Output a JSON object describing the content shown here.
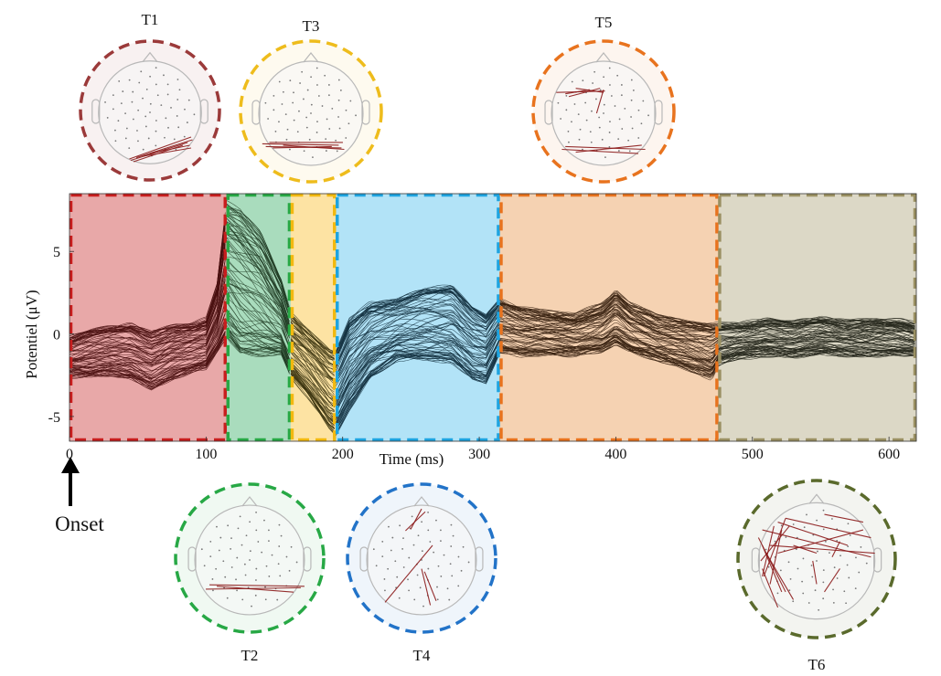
{
  "chart_data": {
    "type": "line",
    "title": "",
    "xlabel": "Time (ms)",
    "ylabel": "Potentiel (μV)",
    "xlim": [
      0,
      620
    ],
    "ylim": [
      -6.5,
      8.5
    ],
    "xticks": [
      0,
      100,
      200,
      300,
      400,
      500,
      600
    ],
    "yticks": [
      5,
      0,
      -5
    ],
    "onset_label": "Onset",
    "onset_ms": 0,
    "series_description": "~120 overlaid ERP channel traces",
    "windows": [
      {
        "name": "T1",
        "start": 0,
        "end": 115,
        "fill": "#e8a8a8",
        "stroke": "#c81e1e",
        "trace": "#4a1010"
      },
      {
        "name": "T2",
        "start": 115,
        "end": 162,
        "fill": "#a9dcbd",
        "stroke": "#27a845",
        "trace": "#1e3a22"
      },
      {
        "name": "T3",
        "start": 162,
        "end": 195,
        "fill": "#fde3a3",
        "stroke": "#f2b90f",
        "trace": "#3c3510"
      },
      {
        "name": "T4",
        "start": 195,
        "end": 315,
        "fill": "#b2e3f7",
        "stroke": "#1ea4e0",
        "trace": "#13303f"
      },
      {
        "name": "T5",
        "start": 315,
        "end": 475,
        "fill": "#f5d2b2",
        "stroke": "#e8731e",
        "trace": "#36200f"
      },
      {
        "name": "T6",
        "start": 475,
        "end": 620,
        "fill": "#dcd8c6",
        "stroke": "#9a9062",
        "trace": "#25261b"
      }
    ],
    "envelope": {
      "t": [
        0,
        15,
        30,
        45,
        60,
        75,
        90,
        100,
        108,
        115,
        125,
        140,
        155,
        162,
        175,
        190,
        195,
        205,
        220,
        240,
        260,
        280,
        295,
        305,
        315,
        330,
        350,
        370,
        390,
        400,
        410,
        430,
        450,
        470,
        475,
        490,
        510,
        530,
        550,
        570,
        590,
        610,
        620
      ],
      "mean": [
        -1.3,
        -1.0,
        -0.8,
        -0.8,
        -1.4,
        -0.8,
        -0.6,
        -0.8,
        0.5,
        2.5,
        1.5,
        1.0,
        0.4,
        -0.5,
        -1.8,
        -3.2,
        -3.5,
        -1.8,
        -0.3,
        0.1,
        0.4,
        0.8,
        -0.2,
        -0.4,
        0.5,
        0.2,
        0.0,
        -0.2,
        0.3,
        0.8,
        0.3,
        -0.2,
        -0.5,
        -0.9,
        -0.9,
        -0.5,
        -0.1,
        -0.4,
        -0.1,
        -0.3,
        -0.1,
        -0.2,
        -0.2
      ],
      "lo": [
        -2.5,
        -2.5,
        -2.4,
        -2.6,
        -3.2,
        -2.6,
        -2.2,
        -2.0,
        -1.0,
        0.0,
        -1.0,
        -1.2,
        -1.2,
        -2.5,
        -3.8,
        -5.6,
        -6.0,
        -4.5,
        -2.6,
        -1.5,
        -1.5,
        -1.6,
        -2.6,
        -2.8,
        -1.0,
        -1.2,
        -1.1,
        -1.2,
        -1.0,
        -0.5,
        -1.0,
        -1.5,
        -2.0,
        -2.6,
        -1.8,
        -1.4,
        -1.2,
        -1.3,
        -1.1,
        -1.2,
        -1.2,
        -1.2,
        -1.2
      ],
      "hi": [
        -0.3,
        0.1,
        0.3,
        0.5,
        0.0,
        0.4,
        0.6,
        0.9,
        3.0,
        8.0,
        7.5,
        6.0,
        3.2,
        1.2,
        0.2,
        -1.0,
        -1.2,
        0.8,
        1.8,
        2.0,
        2.6,
        2.8,
        1.5,
        1.0,
        2.0,
        1.6,
        1.3,
        1.1,
        1.8,
        2.6,
        1.8,
        1.0,
        0.8,
        0.5,
        0.5,
        0.5,
        0.8,
        0.6,
        0.9,
        0.7,
        0.8,
        0.8,
        0.6
      ]
    },
    "topomaps": [
      {
        "label": "T1",
        "color": "#9b3a3a"
      },
      {
        "label": "T3",
        "color": "#eebc1c"
      },
      {
        "label": "T5",
        "color": "#e8731e"
      },
      {
        "label": "T2",
        "color": "#27a845"
      },
      {
        "label": "T4",
        "color": "#2273c8"
      },
      {
        "label": "T6",
        "color": "#5a6a2c"
      }
    ]
  }
}
